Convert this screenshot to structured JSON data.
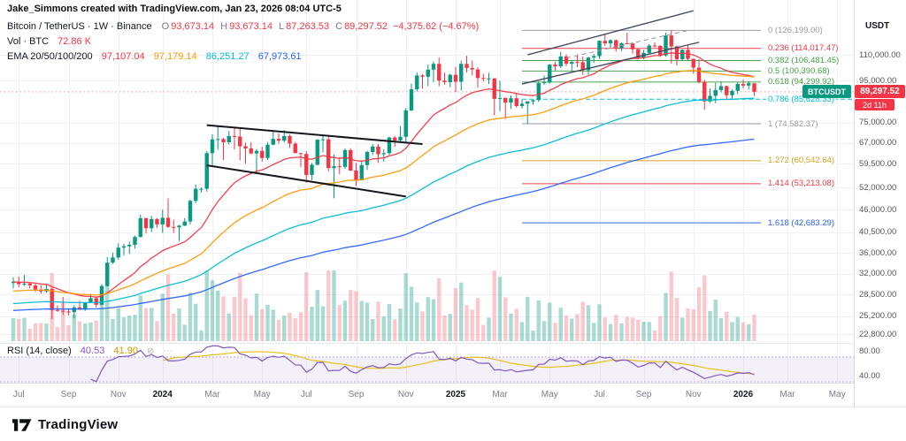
{
  "attribution": "Jake_Simmons created with TradingView.com, Jan 23, 2026 08:04 UTC-5",
  "symbol_legend": {
    "title_full": "Bitcoin / TetherUS · 1W · Binance",
    "ohlc": [
      {
        "k": "O",
        "v": "93,673.14"
      },
      {
        "k": "H",
        "v": "93,673.14"
      },
      {
        "k": "L",
        "v": "87,263.53"
      },
      {
        "k": "C",
        "v": "89,297.52"
      }
    ],
    "change": "−4,375.62 (−4.67%)"
  },
  "volume_legend": {
    "label": "Vol · BTC",
    "value": "72.86 K"
  },
  "ema_legend": {
    "label": "EMA 20/50/100/200",
    "values": [
      {
        "value": "97,107.04",
        "color": "#f23645"
      },
      {
        "value": "97,179.14",
        "color": "#ff9800"
      },
      {
        "value": "86,251.27",
        "color": "#00bcd4"
      },
      {
        "value": "67,973.61",
        "color": "#2962ff"
      }
    ]
  },
  "rsi_legend": {
    "label": "RSI (14, close)",
    "values": [
      {
        "value": "40.53",
        "color": "#7e57c2"
      },
      {
        "value": "41.90",
        "color": "#c79a00"
      }
    ],
    "icons": [
      {
        "glyph": "⊘",
        "name": "hide-indicator-icon"
      },
      {
        "glyph": "⋯",
        "name": "more-options-icon"
      }
    ]
  },
  "price_axis": {
    "title": "USDT",
    "labels": [
      "110,000.00",
      "95,000.00",
      "75,000.00",
      "67,000.00",
      "59,500.00",
      "52,000.00",
      "46,000.00",
      "40,500.00",
      "36,000.00",
      "32,000.00",
      "28,500.00",
      "25,200.00",
      "22,800.00"
    ],
    "last_price_tag": {
      "text": "89,297.52",
      "countdown": "2d 11h",
      "color": "#f23645"
    },
    "symbol_tag": {
      "text": "BTCUSDT",
      "color": "#089981"
    }
  },
  "rsi_axis": {
    "labels": [
      "80.00",
      "40.00"
    ]
  },
  "time_axis": {
    "labels": [
      {
        "text": "Jul",
        "week": 1
      },
      {
        "text": "Sep",
        "week": 10
      },
      {
        "text": "Nov",
        "week": 19
      },
      {
        "text": "2024",
        "week": 27,
        "year": true
      },
      {
        "text": "Mar",
        "week": 36
      },
      {
        "text": "May",
        "week": 45
      },
      {
        "text": "Jul",
        "week": 53
      },
      {
        "text": "Sep",
        "week": 62
      },
      {
        "text": "Nov",
        "week": 71
      },
      {
        "text": "2025",
        "week": 80,
        "year": true
      },
      {
        "text": "Mar",
        "week": 88
      },
      {
        "text": "May",
        "week": 97
      },
      {
        "text": "Jul",
        "week": 106
      },
      {
        "text": "Sep",
        "week": 114
      },
      {
        "text": "Nov",
        "week": 123
      },
      {
        "text": "2026",
        "week": 132,
        "year": true
      },
      {
        "text": "Mar",
        "week": 140
      },
      {
        "text": "May",
        "week": 149
      }
    ]
  },
  "fib_levels": [
    {
      "text": "0 (126,199.00)",
      "price": 126.199,
      "color": "#9598a1",
      "dash": "",
      "extend": false
    },
    {
      "text": "0.236 (114,017.47)",
      "price": 114.01747,
      "color": "#f23645",
      "dash": "",
      "extend": false
    },
    {
      "text": "0.382 (106,481.45)",
      "price": 106.48145,
      "color": "#43a047",
      "dash": "",
      "extend": false
    },
    {
      "text": "0.5 (100,390.68)",
      "price": 100.39068,
      "color": "#43a047",
      "dash": "",
      "extend": false
    },
    {
      "text": "0.618 (94,299.92)",
      "price": 94.29992,
      "color": "#43a047",
      "dash": "",
      "extend": false
    },
    {
      "text": "0.786 (85,628.33)",
      "price": 85.62833,
      "color": "#00bcd4",
      "dash": "5,3",
      "extend": true
    },
    {
      "text": "1 (74,582.37)",
      "price": 74.58237,
      "color": "#9598a1",
      "dash": "",
      "extend": false
    },
    {
      "text": "1.272 (60,542.64)",
      "price": 60.54264,
      "color": "#d4a017",
      "dash": "",
      "extend": false
    },
    {
      "text": "1.414 (53,213.08)",
      "price": 53.21308,
      "color": "#f23645",
      "dash": "",
      "extend": false
    },
    {
      "text": "1.618 (42,683.29)",
      "price": 42.68329,
      "color": "#2962ff",
      "dash": "",
      "extend": false
    }
  ],
  "drawings": {
    "trendlines": [
      {
        "name": "descending-channel-upper-line",
        "points": [
          [
            35,
            74.0
          ],
          [
            74,
            66.5
          ]
        ],
        "color": "#15171c",
        "width": 2,
        "dash": ""
      },
      {
        "name": "descending-channel-lower-line",
        "points": [
          [
            35,
            59.0
          ],
          [
            71,
            49.5
          ]
        ],
        "color": "#15171c",
        "width": 2,
        "dash": ""
      },
      {
        "name": "rising-channel-upper-line",
        "points": [
          [
            93,
            110.0
          ],
          [
            123,
            141.0
          ]
        ],
        "color": "#3c455c",
        "width": 1.3,
        "dash": ""
      },
      {
        "name": "rising-channel-lower-line",
        "points": [
          [
            92,
            93.3
          ],
          [
            124,
            118.0
          ]
        ],
        "color": "#3c455c",
        "width": 1.3,
        "dash": ""
      },
      {
        "name": "rising-channel-mid-dashed-line",
        "points": [
          [
            100,
            108.0
          ],
          [
            122,
            126.2
          ]
        ],
        "color": "#9598a1",
        "width": 1,
        "dash": "5,4"
      }
    ]
  },
  "footer": {
    "brand": "TradingView"
  },
  "chart_data": {
    "type": "candlestick",
    "symbol": "BTCUSDT",
    "interval": "1W",
    "y_scale": "logarithmic",
    "units": "thousand USDT",
    "panes": [
      "price + EMA(20/50/100/200) + volume",
      "RSI(14) with SMA(14)"
    ],
    "last_price": 89.29752,
    "ema_periods": [
      20,
      50,
      100,
      200
    ],
    "ema_seed_estimates": {
      "20": 30.6,
      "50": 29.0,
      "100": 27.0,
      "200": 26.0
    },
    "candles": [
      [
        30.4,
        31.4,
        29.5,
        30.6
      ],
      [
        30.6,
        31.5,
        29.7,
        30.2
      ],
      [
        30.2,
        31.8,
        29.9,
        30.3
      ],
      [
        30.3,
        30.5,
        29.5,
        30.0
      ],
      [
        30.0,
        30.3,
        28.9,
        29.3
      ],
      [
        29.3,
        30.0,
        28.6,
        29.0
      ],
      [
        29.0,
        30.2,
        28.8,
        29.4
      ],
      [
        29.4,
        29.6,
        24.8,
        26.1
      ],
      [
        26.1,
        26.8,
        25.8,
        26.0
      ],
      [
        26.0,
        28.1,
        25.4,
        25.9
      ],
      [
        25.9,
        26.4,
        25.3,
        25.8
      ],
      [
        25.8,
        26.8,
        24.9,
        26.5
      ],
      [
        26.5,
        27.5,
        26.1,
        26.2
      ],
      [
        26.2,
        27.3,
        26.0,
        27.2
      ],
      [
        27.2,
        28.6,
        27.2,
        27.9
      ],
      [
        27.9,
        28.0,
        26.5,
        26.9
      ],
      [
        26.9,
        30.2,
        26.8,
        29.9
      ],
      [
        29.9,
        35.2,
        29.8,
        34.1
      ],
      [
        34.1,
        36.0,
        33.9,
        35.1
      ],
      [
        35.1,
        38.0,
        34.7,
        37.1
      ],
      [
        37.1,
        37.9,
        35.5,
        37.4
      ],
      [
        37.4,
        38.4,
        35.8,
        37.7
      ],
      [
        37.7,
        39.7,
        36.9,
        39.4
      ],
      [
        39.4,
        44.7,
        39.3,
        43.8
      ],
      [
        43.8,
        43.9,
        40.2,
        41.4
      ],
      [
        41.4,
        44.4,
        40.5,
        43.6
      ],
      [
        43.6,
        43.8,
        41.5,
        42.3
      ],
      [
        42.3,
        45.9,
        40.3,
        43.9
      ],
      [
        43.9,
        49.0,
        41.5,
        41.7
      ],
      [
        41.7,
        43.4,
        40.3,
        41.6
      ],
      [
        41.6,
        42.2,
        38.5,
        42.0
      ],
      [
        42.0,
        43.8,
        41.9,
        43.0
      ],
      [
        43.0,
        48.6,
        42.3,
        48.3
      ],
      [
        48.3,
        52.9,
        47.7,
        51.7
      ],
      [
        51.7,
        52.1,
        50.6,
        51.7
      ],
      [
        51.7,
        64.0,
        50.9,
        63.2
      ],
      [
        63.2,
        70.2,
        59.0,
        68.3
      ],
      [
        68.3,
        73.8,
        64.5,
        68.4
      ],
      [
        68.4,
        68.9,
        60.8,
        67.2
      ],
      [
        67.2,
        71.6,
        66.4,
        69.6
      ],
      [
        69.6,
        72.8,
        64.5,
        69.4
      ],
      [
        69.4,
        72.8,
        60.7,
        65.7
      ],
      [
        65.7,
        67.1,
        59.6,
        64.9
      ],
      [
        64.9,
        67.2,
        62.8,
        63.1
      ],
      [
        63.1,
        64.7,
        56.5,
        64.0
      ],
      [
        64.0,
        65.5,
        60.2,
        61.5
      ],
      [
        61.5,
        67.3,
        60.8,
        66.3
      ],
      [
        66.3,
        71.9,
        66.1,
        68.5
      ],
      [
        68.5,
        70.6,
        66.7,
        67.8
      ],
      [
        67.8,
        71.9,
        67.1,
        69.6
      ],
      [
        69.6,
        70.2,
        65.1,
        66.7
      ],
      [
        66.7,
        67.3,
        63.4,
        63.2
      ],
      [
        63.2,
        63.3,
        58.4,
        62.9
      ],
      [
        62.9,
        63.9,
        53.5,
        55.9
      ],
      [
        55.9,
        59.8,
        54.3,
        59.2
      ],
      [
        59.2,
        68.4,
        59.0,
        68.2
      ],
      [
        68.2,
        69.9,
        63.5,
        68.3
      ],
      [
        68.3,
        70.1,
        57.1,
        58.1
      ],
      [
        58.1,
        62.7,
        49.0,
        58.7
      ],
      [
        58.7,
        61.8,
        56.1,
        58.5
      ],
      [
        58.5,
        64.9,
        57.9,
        64.3
      ],
      [
        64.3,
        65.0,
        57.1,
        57.3
      ],
      [
        57.3,
        59.8,
        52.5,
        54.2
      ],
      [
        54.2,
        60.6,
        54.2,
        59.1
      ],
      [
        59.1,
        64.1,
        57.5,
        63.6
      ],
      [
        63.6,
        66.5,
        62.6,
        65.6
      ],
      [
        65.6,
        66.5,
        59.8,
        62.8
      ],
      [
        62.8,
        64.5,
        60.3,
        63.2
      ],
      [
        63.2,
        69.4,
        62.5,
        69.0
      ],
      [
        69.0,
        69.5,
        65.5,
        67.9
      ],
      [
        67.9,
        73.6,
        67.5,
        69.3
      ],
      [
        69.3,
        81.5,
        66.8,
        80.4
      ],
      [
        80.4,
        93.5,
        80.2,
        90.6
      ],
      [
        90.6,
        99.6,
        89.4,
        97.9
      ],
      [
        97.9,
        98.6,
        90.8,
        97.2
      ],
      [
        97.2,
        104.1,
        92.1,
        101.2
      ],
      [
        101.2,
        106.0,
        94.2,
        104.5
      ],
      [
        104.5,
        108.3,
        92.2,
        95.1
      ],
      [
        95.1,
        99.5,
        93.0,
        94.3
      ],
      [
        94.3,
        98.8,
        91.6,
        98.3
      ],
      [
        98.3,
        102.7,
        89.2,
        94.5
      ],
      [
        94.5,
        106.4,
        89.9,
        104.5
      ],
      [
        104.5,
        109.4,
        99.5,
        102.1
      ],
      [
        102.1,
        106.5,
        97.9,
        101.3
      ],
      [
        101.3,
        102.5,
        91.3,
        96.5
      ],
      [
        96.5,
        98.9,
        94.7,
        96.1
      ],
      [
        96.1,
        99.4,
        93.3,
        96.3
      ],
      [
        96.3,
        96.4,
        78.2,
        85.8
      ],
      [
        85.8,
        95.0,
        80.1,
        86.2
      ],
      [
        86.2,
        86.5,
        76.6,
        84.0
      ],
      [
        84.0,
        87.5,
        81.1,
        86.1
      ],
      [
        86.1,
        88.8,
        81.6,
        82.4
      ],
      [
        82.4,
        85.5,
        81.2,
        83.5
      ],
      [
        83.5,
        84.7,
        74.6,
        84.6
      ],
      [
        84.6,
        85.4,
        83.0,
        85.2
      ],
      [
        85.2,
        94.7,
        84.4,
        93.8
      ],
      [
        93.8,
        97.9,
        92.8,
        94.2
      ],
      [
        94.2,
        104.3,
        93.5,
        104.1
      ],
      [
        104.1,
        105.8,
        100.7,
        103.1
      ],
      [
        103.1,
        111.9,
        102.1,
        109.0
      ],
      [
        109.0,
        110.3,
        103.1,
        104.6
      ],
      [
        104.6,
        106.8,
        100.4,
        105.6
      ],
      [
        105.6,
        110.3,
        102.6,
        105.5
      ],
      [
        105.5,
        108.9,
        98.2,
        100.9
      ],
      [
        100.9,
        108.8,
        98.3,
        108.3
      ],
      [
        108.3,
        110.5,
        105.1,
        109.2
      ],
      [
        109.2,
        119.3,
        107.5,
        119.0
      ],
      [
        119.0,
        123.2,
        115.7,
        117.3
      ],
      [
        117.3,
        120.0,
        114.5,
        119.4
      ],
      [
        119.4,
        120.0,
        111.9,
        114.2
      ],
      [
        114.2,
        118.0,
        112.4,
        117.4
      ],
      [
        117.4,
        124.5,
        116.8,
        117.2
      ],
      [
        117.2,
        117.9,
        110.7,
        113.5
      ],
      [
        113.5,
        113.6,
        107.3,
        108.2
      ],
      [
        108.2,
        113.0,
        107.2,
        111.2
      ],
      [
        111.2,
        116.8,
        110.8,
        115.9
      ],
      [
        115.9,
        117.9,
        114.6,
        115.7
      ],
      [
        115.7,
        116.1,
        108.7,
        109.6
      ],
      [
        109.6,
        124.7,
        108.8,
        122.6
      ],
      [
        122.6,
        126.2,
        104.6,
        115.3
      ],
      [
        115.3,
        116.0,
        103.5,
        107.3
      ],
      [
        107.3,
        113.4,
        106.2,
        113.1
      ],
      [
        113.1,
        116.1,
        106.6,
        107.5
      ],
      [
        107.5,
        107.7,
        98.9,
        102.3
      ],
      [
        102.3,
        107.3,
        93.6,
        94.4
      ],
      [
        94.4,
        95.6,
        80.6,
        84.6
      ],
      [
        84.6,
        91.0,
        83.9,
        87.3
      ],
      [
        87.3,
        93.9,
        83.8,
        90.2
      ],
      [
        90.2,
        94.6,
        88.9,
        92.2
      ],
      [
        92.2,
        92.4,
        85.5,
        87.6
      ],
      [
        87.6,
        90.4,
        85.8,
        89.8
      ],
      [
        89.8,
        94.2,
        88.1,
        93.3
      ],
      [
        93.3,
        95.7,
        91.0,
        92.5
      ],
      [
        92.5,
        94.8,
        90.5,
        93.7
      ],
      [
        93.67,
        93.67,
        87.26,
        89.3
      ]
    ]
  }
}
